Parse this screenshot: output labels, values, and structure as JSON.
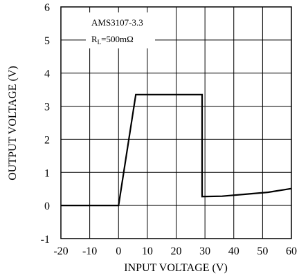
{
  "chart_data": {
    "type": "line",
    "xlabel": "INPUT VOLTAGE (V)",
    "ylabel": "OUTPUT VOLTAGE (V)",
    "xlim": [
      -20,
      60
    ],
    "ylim": [
      -1,
      6
    ],
    "xticks": [
      -20,
      -10,
      0,
      10,
      20,
      30,
      40,
      50,
      60
    ],
    "yticks": [
      -1,
      0,
      1,
      2,
      3,
      4,
      5,
      6
    ],
    "grid": true,
    "annotations": {
      "part": "AMS3107-3.3",
      "load_prefix": "R",
      "load_sub": "L",
      "load_value": "=500mΩ"
    },
    "series": [
      {
        "x": [
          -20,
          0,
          6,
          29,
          29,
          36,
          44,
          52,
          60
        ],
        "y": [
          0,
          0,
          3.35,
          3.35,
          0.27,
          0.28,
          0.34,
          0.4,
          0.51
        ]
      }
    ]
  }
}
